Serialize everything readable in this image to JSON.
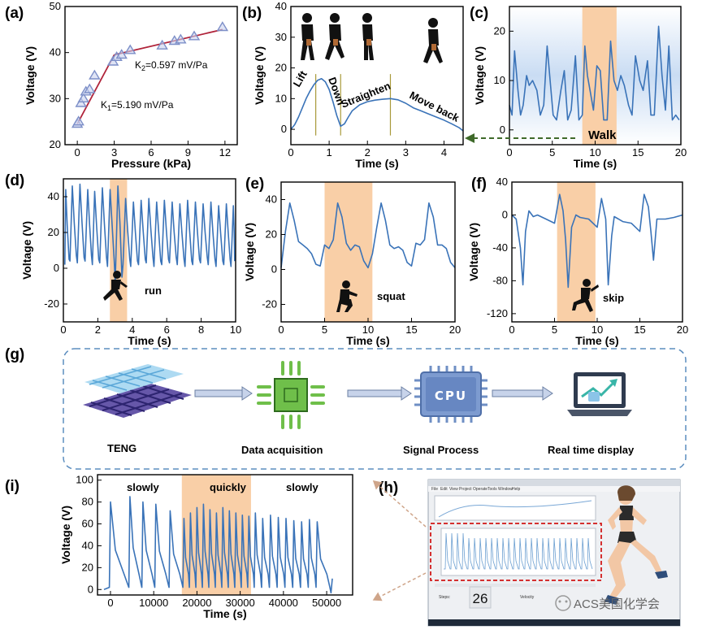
{
  "panel_labels": {
    "a": "(a)",
    "b": "(b)",
    "c": "(c)",
    "d": "(d)",
    "e": "(e)",
    "f": "(f)",
    "g": "(g)",
    "h": "(h)",
    "i": "(i)"
  },
  "workflow": {
    "teng": "TENG",
    "data_acquisition": "Data acquisition",
    "signal_process": "Signal Process",
    "cpu": "CPU",
    "real_time_display": "Real time display"
  },
  "software": {
    "steps_label": "Steps:",
    "steps_value": "26",
    "velocity_label": "Velocity",
    "menu": [
      "File",
      "Edit",
      "View",
      "Project",
      "Operate",
      "Tools",
      "Window",
      "Help"
    ]
  },
  "watermark": "ACS美国化学会",
  "colors": {
    "line": "#3a73b8",
    "highlight": "#f9cfa7",
    "fit": "#b0233a",
    "marker": "#7d8fc8",
    "dash_box": "#5b8dbf",
    "red_box": "#d43030",
    "arrow": "#cfa58a",
    "green_arrow": "#3f6a2a"
  },
  "chart_data": [
    {
      "id": "a",
      "type": "scatter",
      "xlabel": "Pressure (kPa)",
      "ylabel": "Voltage (V)",
      "xlim": [
        -1,
        13
      ],
      "ylim": [
        20,
        50
      ],
      "xticks": [
        0,
        3,
        6,
        9,
        12
      ],
      "yticks": [
        20,
        30,
        40,
        50
      ],
      "points": [
        [
          0,
          24.5
        ],
        [
          0.1,
          25
        ],
        [
          0.3,
          29
        ],
        [
          0.5,
          30
        ],
        [
          0.7,
          31.5
        ],
        [
          1,
          32
        ],
        [
          1.4,
          35
        ],
        [
          2.9,
          38
        ],
        [
          3.2,
          39
        ],
        [
          3.6,
          39.5
        ],
        [
          4.3,
          40.5
        ],
        [
          6.9,
          41.5
        ],
        [
          7.9,
          42.5
        ],
        [
          8.4,
          42.8
        ],
        [
          9.5,
          43.5
        ],
        [
          11.8,
          45.5
        ]
      ],
      "fit_lines": [
        [
          [
            0,
            24.5
          ],
          [
            3.0,
            39.5
          ]
        ],
        [
          [
            3.0,
            39.5
          ],
          [
            11.8,
            45
          ]
        ]
      ],
      "annotations": [
        {
          "text": "K",
          "sub": "2",
          "rest": "=0.597 mV/Pa"
        },
        {
          "text": "K",
          "sub": "1",
          "rest": "=5.190 mV/Pa"
        }
      ]
    },
    {
      "id": "b",
      "type": "line",
      "xlabel": "Time (s)",
      "ylabel": "Voltage (V)",
      "xlim": [
        0,
        4.5
      ],
      "ylim": [
        -5,
        40
      ],
      "xticks": [
        0,
        1,
        2,
        3,
        4
      ],
      "yticks": [
        0,
        10,
        20,
        30,
        40
      ],
      "x": [
        0,
        0.1,
        0.2,
        0.3,
        0.4,
        0.5,
        0.6,
        0.7,
        0.8,
        0.9,
        1.0,
        1.1,
        1.2,
        1.3,
        1.4,
        1.5,
        1.6,
        1.8,
        2.0,
        2.2,
        2.4,
        2.6,
        2.8,
        3.0,
        3.2,
        3.4,
        3.6,
        3.8,
        4.0,
        4.2,
        4.4,
        4.5
      ],
      "y": [
        0,
        1.5,
        4,
        7,
        10,
        12.5,
        14.5,
        16,
        16.5,
        15.5,
        13,
        9,
        4.5,
        1,
        1.8,
        4,
        6,
        8,
        9,
        9.5,
        9.8,
        10,
        9.6,
        8.5,
        7,
        6,
        5,
        4,
        3,
        1.8,
        0.5,
        -0.5
      ],
      "vlines": [
        0.65,
        1.3,
        2.6
      ],
      "labels": [
        "Lift",
        "Down",
        "Straighten",
        "Move back"
      ]
    },
    {
      "id": "c",
      "type": "line",
      "xlabel": "Time (s)",
      "ylabel": "Voltage (V)",
      "xlim": [
        0,
        20
      ],
      "ylim": [
        -3,
        25
      ],
      "xticks": [
        0,
        5,
        10,
        15,
        20
      ],
      "yticks": [
        0,
        10,
        20
      ],
      "highlight": [
        8.5,
        12.5
      ],
      "highlight_label": "Walk",
      "x": [
        0,
        0.3,
        0.6,
        1,
        1.3,
        1.6,
        2.0,
        2.3,
        2.7,
        3.2,
        3.6,
        4.0,
        4.4,
        4.8,
        5.1,
        5.5,
        6,
        6.4,
        6.8,
        7.2,
        7.7,
        8.1,
        8.5,
        8.8,
        9.1,
        9.4,
        9.8,
        10.2,
        10.6,
        11,
        11.4,
        11.8,
        12.2,
        12.6,
        13,
        13.4,
        13.9,
        14.3,
        14.7,
        15.2,
        15.6,
        16.1,
        16.5,
        16.9,
        17.4,
        17.8,
        18.2,
        18.6,
        19,
        19.4,
        19.8
      ],
      "y": [
        5,
        3,
        16,
        8,
        3,
        5,
        11,
        9,
        10,
        8,
        3,
        5,
        17,
        9,
        3,
        2,
        8,
        12,
        2,
        4,
        15,
        2,
        3,
        17,
        11,
        8,
        4,
        13,
        12,
        2,
        2,
        18,
        10,
        8,
        11,
        9,
        5,
        3,
        15,
        10,
        8,
        14,
        3,
        3,
        21,
        11,
        4,
        17,
        2,
        3,
        2
      ]
    },
    {
      "id": "d",
      "type": "line",
      "xlabel": "Time (s)",
      "ylabel": "Voltage (V)",
      "xlim": [
        0,
        10
      ],
      "ylim": [
        -30,
        50
      ],
      "xticks": [
        0,
        2,
        4,
        6,
        8,
        10
      ],
      "yticks": [
        -20,
        0,
        20,
        40
      ],
      "highlight": [
        2.7,
        3.7
      ],
      "highlight_label": "run",
      "peaks_x": [
        0.15,
        0.55,
        1.0,
        1.45,
        1.85,
        2.3,
        2.75,
        3.2,
        3.65,
        4.1,
        4.55,
        5.0,
        5.45,
        5.9,
        6.35,
        6.8,
        7.25,
        7.7,
        8.15,
        8.6,
        9.05,
        9.5,
        9.9
      ],
      "peaks_y": [
        44,
        46,
        47,
        44,
        43,
        45,
        44,
        46,
        39,
        37,
        38,
        39,
        37,
        38,
        37,
        36,
        38,
        37,
        36,
        37,
        35,
        36,
        35
      ],
      "troughs_y": [
        2,
        4,
        3,
        4,
        2,
        3,
        1,
        -8,
        2,
        1,
        2,
        3,
        1,
        2,
        3,
        2,
        1,
        2,
        3,
        2,
        1,
        2,
        1
      ]
    },
    {
      "id": "e",
      "type": "line",
      "xlabel": "Time (s)",
      "ylabel": "Voltage (V)",
      "xlim": [
        0,
        20
      ],
      "ylim": [
        -30,
        50
      ],
      "xticks": [
        0,
        5,
        10,
        15,
        20
      ],
      "yticks": [
        -20,
        0,
        20,
        40
      ],
      "highlight": [
        5,
        10.5
      ],
      "highlight_label": "squat",
      "x": [
        0,
        0.5,
        1,
        1.5,
        2,
        2.5,
        3,
        3.5,
        4,
        4.5,
        5,
        5.5,
        6,
        6.5,
        7,
        7.5,
        8,
        8.5,
        9,
        9.5,
        10,
        10.5,
        11,
        11.5,
        12,
        12.5,
        13,
        13.5,
        14,
        14.5,
        15,
        15.5,
        16,
        16.5,
        17,
        17.5,
        18,
        18.5,
        19,
        19.5,
        20
      ],
      "y": [
        1,
        22,
        38,
        28,
        16,
        14,
        12,
        9,
        3,
        2,
        14,
        12,
        17,
        38,
        30,
        15,
        11,
        14,
        13,
        5,
        1,
        9,
        24,
        38,
        28,
        14,
        12,
        13,
        11,
        4,
        2,
        15,
        14,
        17,
        38,
        30,
        14,
        14,
        12,
        4,
        1
      ]
    },
    {
      "id": "f",
      "type": "line",
      "xlabel": "Time (s)",
      "ylabel": "Voltage (V)",
      "xlim": [
        0,
        20
      ],
      "ylim": [
        -130,
        40
      ],
      "xticks": [
        0,
        5,
        10,
        15,
        20
      ],
      "yticks": [
        -120,
        -80,
        -40,
        0,
        40
      ],
      "highlight": [
        5.3,
        9.8
      ],
      "highlight_label": "skip",
      "x": [
        0,
        0.5,
        1,
        1.3,
        1.6,
        2,
        2.5,
        3,
        4,
        5,
        5.6,
        6,
        6.3,
        6.6,
        7,
        7.5,
        8,
        9,
        10,
        10.5,
        11,
        11.3,
        11.7,
        12,
        12.5,
        13,
        14,
        15,
        15.5,
        16,
        16.3,
        16.6,
        17,
        18,
        19,
        20
      ],
      "y": [
        0,
        -5,
        -40,
        -85,
        -20,
        5,
        -2,
        0,
        -5,
        -10,
        25,
        5,
        -30,
        -88,
        -15,
        0,
        -3,
        -5,
        -15,
        20,
        -5,
        -85,
        -25,
        -2,
        -5,
        -8,
        -10,
        -20,
        25,
        10,
        -20,
        -55,
        -5,
        -5,
        -3,
        0
      ]
    },
    {
      "id": "i",
      "type": "line",
      "xlabel": "Time (s)",
      "ylabel": "Voltage (V)",
      "xlim": [
        -3000,
        56000
      ],
      "ylim": [
        -5,
        105
      ],
      "xticks": [
        0,
        10000,
        20000,
        30000,
        40000,
        50000
      ],
      "yticks": [
        0,
        20,
        40,
        60,
        80,
        100
      ],
      "highlight": [
        16500,
        32500
      ],
      "regions": [
        "slowly",
        "quickly",
        "slowly"
      ],
      "peaks_x": [
        0,
        4500,
        7500,
        10500,
        13800,
        17000,
        18500,
        20000,
        21500,
        23000,
        24500,
        26000,
        27500,
        29000,
        30500,
        32000,
        33500,
        35200,
        37000,
        38800,
        40600,
        42400,
        44200,
        46000,
        47800
      ],
      "peaks_y": [
        80,
        85,
        80,
        78,
        72,
        65,
        70,
        75,
        78,
        73,
        70,
        75,
        72,
        70,
        68,
        67,
        70,
        65,
        68,
        66,
        65,
        63,
        62,
        64,
        62
      ],
      "end_x": 51000
    }
  ]
}
